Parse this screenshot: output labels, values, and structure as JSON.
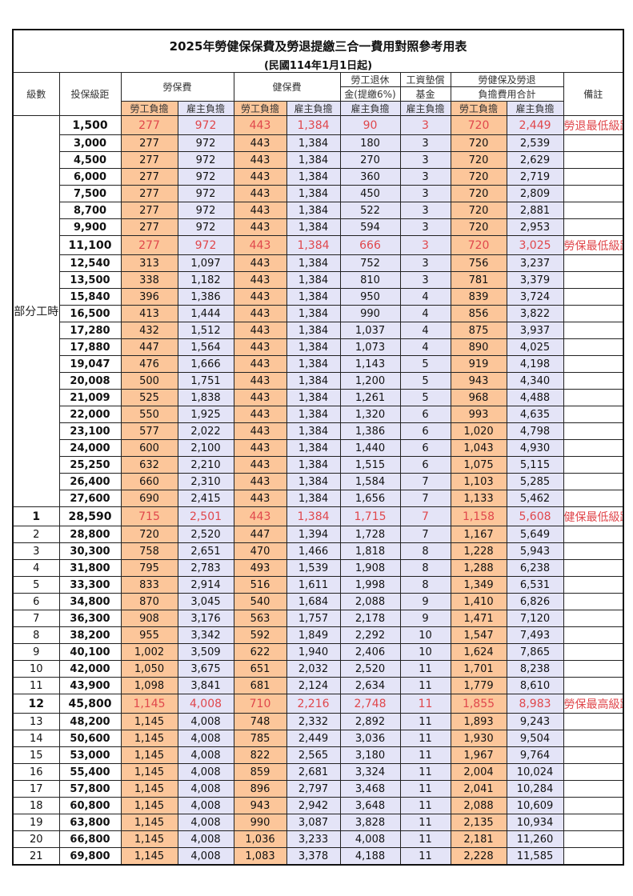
{
  "title": "2025年勞健保保費及勞退提繳三合一費用對照參考用表",
  "subtitle": "(民國114年1月1日起)",
  "headers": {
    "grade": "級數",
    "amount": "投保級距",
    "labor_insurance": "勞保費",
    "health_insurance": "健保費",
    "pension_line1": "勞工退休",
    "pension_line2": "金(提繳6%)",
    "wage_fund_line1": "工資墊償",
    "wage_fund_line2": "基金",
    "total_line1": "勞健保及勞退",
    "total_line2": "負擔費用合計",
    "remark": "備註",
    "employee": "勞工負擔",
    "employer": "雇主負擔"
  },
  "part_time_group": "部分工時",
  "colors": {
    "employee_fill": "#fcc69a",
    "employer_fill": "#e4e4f7",
    "highlight_text": "#e0474c"
  },
  "rows": [
    {
      "grade": "",
      "amount": "1,500",
      "cells": [
        "277",
        "972",
        "443",
        "1,384",
        "90",
        "3",
        "720",
        "2,449"
      ],
      "remark": "勞退最低級距",
      "highlight": true
    },
    {
      "grade": "",
      "amount": "3,000",
      "cells": [
        "277",
        "972",
        "443",
        "1,384",
        "180",
        "3",
        "720",
        "2,539"
      ],
      "remark": ""
    },
    {
      "grade": "",
      "amount": "4,500",
      "cells": [
        "277",
        "972",
        "443",
        "1,384",
        "270",
        "3",
        "720",
        "2,629"
      ],
      "remark": ""
    },
    {
      "grade": "",
      "amount": "6,000",
      "cells": [
        "277",
        "972",
        "443",
        "1,384",
        "360",
        "3",
        "720",
        "2,719"
      ],
      "remark": ""
    },
    {
      "grade": "",
      "amount": "7,500",
      "cells": [
        "277",
        "972",
        "443",
        "1,384",
        "450",
        "3",
        "720",
        "2,809"
      ],
      "remark": ""
    },
    {
      "grade": "",
      "amount": "8,700",
      "cells": [
        "277",
        "972",
        "443",
        "1,384",
        "522",
        "3",
        "720",
        "2,881"
      ],
      "remark": ""
    },
    {
      "grade": "",
      "amount": "9,900",
      "cells": [
        "277",
        "972",
        "443",
        "1,384",
        "594",
        "3",
        "720",
        "2,953"
      ],
      "remark": ""
    },
    {
      "grade": "",
      "amount": "11,100",
      "cells": [
        "277",
        "972",
        "443",
        "1,384",
        "666",
        "3",
        "720",
        "3,025"
      ],
      "remark": "勞保最低級距",
      "highlight": true
    },
    {
      "grade": "",
      "amount": "12,540",
      "cells": [
        "313",
        "1,097",
        "443",
        "1,384",
        "752",
        "3",
        "756",
        "3,237"
      ],
      "remark": ""
    },
    {
      "grade": "",
      "amount": "13,500",
      "cells": [
        "338",
        "1,182",
        "443",
        "1,384",
        "810",
        "3",
        "781",
        "3,379"
      ],
      "remark": ""
    },
    {
      "grade": "",
      "amount": "15,840",
      "cells": [
        "396",
        "1,386",
        "443",
        "1,384",
        "950",
        "4",
        "839",
        "3,724"
      ],
      "remark": ""
    },
    {
      "grade": "",
      "amount": "16,500",
      "cells": [
        "413",
        "1,444",
        "443",
        "1,384",
        "990",
        "4",
        "856",
        "3,822"
      ],
      "remark": ""
    },
    {
      "grade": "",
      "amount": "17,280",
      "cells": [
        "432",
        "1,512",
        "443",
        "1,384",
        "1,037",
        "4",
        "875",
        "3,937"
      ],
      "remark": ""
    },
    {
      "grade": "",
      "amount": "17,880",
      "cells": [
        "447",
        "1,564",
        "443",
        "1,384",
        "1,073",
        "4",
        "890",
        "4,025"
      ],
      "remark": ""
    },
    {
      "grade": "",
      "amount": "19,047",
      "cells": [
        "476",
        "1,666",
        "443",
        "1,384",
        "1,143",
        "5",
        "919",
        "4,198"
      ],
      "remark": ""
    },
    {
      "grade": "",
      "amount": "20,008",
      "cells": [
        "500",
        "1,751",
        "443",
        "1,384",
        "1,200",
        "5",
        "943",
        "4,340"
      ],
      "remark": ""
    },
    {
      "grade": "",
      "amount": "21,009",
      "cells": [
        "525",
        "1,838",
        "443",
        "1,384",
        "1,261",
        "5",
        "968",
        "4,488"
      ],
      "remark": ""
    },
    {
      "grade": "",
      "amount": "22,000",
      "cells": [
        "550",
        "1,925",
        "443",
        "1,384",
        "1,320",
        "6",
        "993",
        "4,635"
      ],
      "remark": ""
    },
    {
      "grade": "",
      "amount": "23,100",
      "cells": [
        "577",
        "2,022",
        "443",
        "1,384",
        "1,386",
        "6",
        "1,020",
        "4,798"
      ],
      "remark": ""
    },
    {
      "grade": "",
      "amount": "24,000",
      "cells": [
        "600",
        "2,100",
        "443",
        "1,384",
        "1,440",
        "6",
        "1,043",
        "4,930"
      ],
      "remark": ""
    },
    {
      "grade": "",
      "amount": "25,250",
      "cells": [
        "632",
        "2,210",
        "443",
        "1,384",
        "1,515",
        "6",
        "1,075",
        "5,115"
      ],
      "remark": ""
    },
    {
      "grade": "",
      "amount": "26,400",
      "cells": [
        "660",
        "2,310",
        "443",
        "1,384",
        "1,584",
        "7",
        "1,103",
        "5,285"
      ],
      "remark": ""
    },
    {
      "grade": "",
      "amount": "27,600",
      "cells": [
        "690",
        "2,415",
        "443",
        "1,384",
        "1,656",
        "7",
        "1,133",
        "5,462"
      ],
      "remark": ""
    },
    {
      "grade": "1",
      "amount": "28,590",
      "cells": [
        "715",
        "2,501",
        "443",
        "1,384",
        "1,715",
        "7",
        "1,158",
        "5,608"
      ],
      "remark": "健保最低級距",
      "highlight": true
    },
    {
      "grade": "2",
      "amount": "28,800",
      "cells": [
        "720",
        "2,520",
        "447",
        "1,394",
        "1,728",
        "7",
        "1,167",
        "5,649"
      ],
      "remark": ""
    },
    {
      "grade": "3",
      "amount": "30,300",
      "cells": [
        "758",
        "2,651",
        "470",
        "1,466",
        "1,818",
        "8",
        "1,228",
        "5,943"
      ],
      "remark": ""
    },
    {
      "grade": "4",
      "amount": "31,800",
      "cells": [
        "795",
        "2,783",
        "493",
        "1,539",
        "1,908",
        "8",
        "1,288",
        "6,238"
      ],
      "remark": ""
    },
    {
      "grade": "5",
      "amount": "33,300",
      "cells": [
        "833",
        "2,914",
        "516",
        "1,611",
        "1,998",
        "8",
        "1,349",
        "6,531"
      ],
      "remark": ""
    },
    {
      "grade": "6",
      "amount": "34,800",
      "cells": [
        "870",
        "3,045",
        "540",
        "1,684",
        "2,088",
        "9",
        "1,410",
        "6,826"
      ],
      "remark": ""
    },
    {
      "grade": "7",
      "amount": "36,300",
      "cells": [
        "908",
        "3,176",
        "563",
        "1,757",
        "2,178",
        "9",
        "1,471",
        "7,120"
      ],
      "remark": ""
    },
    {
      "grade": "8",
      "amount": "38,200",
      "cells": [
        "955",
        "3,342",
        "592",
        "1,849",
        "2,292",
        "10",
        "1,547",
        "7,493"
      ],
      "remark": ""
    },
    {
      "grade": "9",
      "amount": "40,100",
      "cells": [
        "1,002",
        "3,509",
        "622",
        "1,940",
        "2,406",
        "10",
        "1,624",
        "7,865"
      ],
      "remark": ""
    },
    {
      "grade": "10",
      "amount": "42,000",
      "cells": [
        "1,050",
        "3,675",
        "651",
        "2,032",
        "2,520",
        "11",
        "1,701",
        "8,238"
      ],
      "remark": ""
    },
    {
      "grade": "11",
      "amount": "43,900",
      "cells": [
        "1,098",
        "3,841",
        "681",
        "2,124",
        "2,634",
        "11",
        "1,779",
        "8,610"
      ],
      "remark": ""
    },
    {
      "grade": "12",
      "amount": "45,800",
      "cells": [
        "1,145",
        "4,008",
        "710",
        "2,216",
        "2,748",
        "11",
        "1,855",
        "8,983"
      ],
      "remark": "勞保最高級距",
      "highlight": true
    },
    {
      "grade": "13",
      "amount": "48,200",
      "cells": [
        "1,145",
        "4,008",
        "748",
        "2,332",
        "2,892",
        "11",
        "1,893",
        "9,243"
      ],
      "remark": ""
    },
    {
      "grade": "14",
      "amount": "50,600",
      "cells": [
        "1,145",
        "4,008",
        "785",
        "2,449",
        "3,036",
        "11",
        "1,930",
        "9,504"
      ],
      "remark": ""
    },
    {
      "grade": "15",
      "amount": "53,000",
      "cells": [
        "1,145",
        "4,008",
        "822",
        "2,565",
        "3,180",
        "11",
        "1,967",
        "9,764"
      ],
      "remark": ""
    },
    {
      "grade": "16",
      "amount": "55,400",
      "cells": [
        "1,145",
        "4,008",
        "859",
        "2,681",
        "3,324",
        "11",
        "2,004",
        "10,024"
      ],
      "remark": ""
    },
    {
      "grade": "17",
      "amount": "57,800",
      "cells": [
        "1,145",
        "4,008",
        "896",
        "2,797",
        "3,468",
        "11",
        "2,041",
        "10,284"
      ],
      "remark": ""
    },
    {
      "grade": "18",
      "amount": "60,800",
      "cells": [
        "1,145",
        "4,008",
        "943",
        "2,942",
        "3,648",
        "11",
        "2,088",
        "10,609"
      ],
      "remark": ""
    },
    {
      "grade": "19",
      "amount": "63,800",
      "cells": [
        "1,145",
        "4,008",
        "990",
        "3,087",
        "3,828",
        "11",
        "2,135",
        "10,934"
      ],
      "remark": ""
    },
    {
      "grade": "20",
      "amount": "66,800",
      "cells": [
        "1,145",
        "4,008",
        "1,036",
        "3,233",
        "4,008",
        "11",
        "2,181",
        "11,260"
      ],
      "remark": ""
    },
    {
      "grade": "21",
      "amount": "69,800",
      "cells": [
        "1,145",
        "4,008",
        "1,083",
        "3,378",
        "4,188",
        "11",
        "2,228",
        "11,585"
      ],
      "remark": ""
    }
  ]
}
